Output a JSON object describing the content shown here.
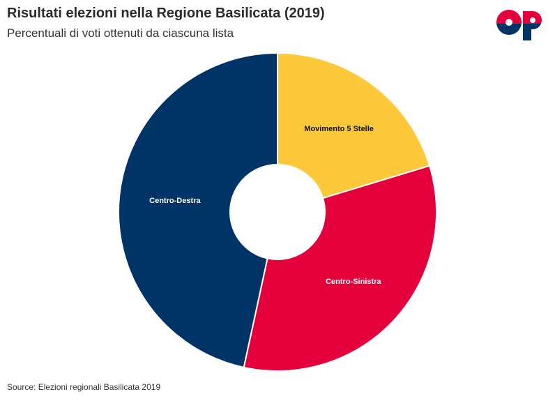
{
  "header": {
    "title": "Risultati elezioni nella Regione Basilicata (2019)",
    "subtitle": "Percentuali di voti ottenuti da ciascuna lista"
  },
  "logo": {
    "text": "OP",
    "colors": [
      "#e4003a",
      "#003366"
    ]
  },
  "footer": {
    "source": "Source: Elezioni regionali Basilicata 2019"
  },
  "chart_data": {
    "type": "pie",
    "variant": "donut",
    "title": "Risultati elezioni nella Regione Basilicata (2019)",
    "subtitle": "Percentuali di voti ottenuti da ciascuna lista",
    "categories": [
      "Movimento 5 Stelle",
      "Centro-Sinistra",
      "Centro-Destra"
    ],
    "values": [
      20.3,
      33.1,
      46.6
    ],
    "colors": [
      "#fdc93a",
      "#e4003a",
      "#003366"
    ],
    "label_colors": [
      "#111111",
      "#ffffff",
      "#ffffff"
    ],
    "legend": "none"
  }
}
